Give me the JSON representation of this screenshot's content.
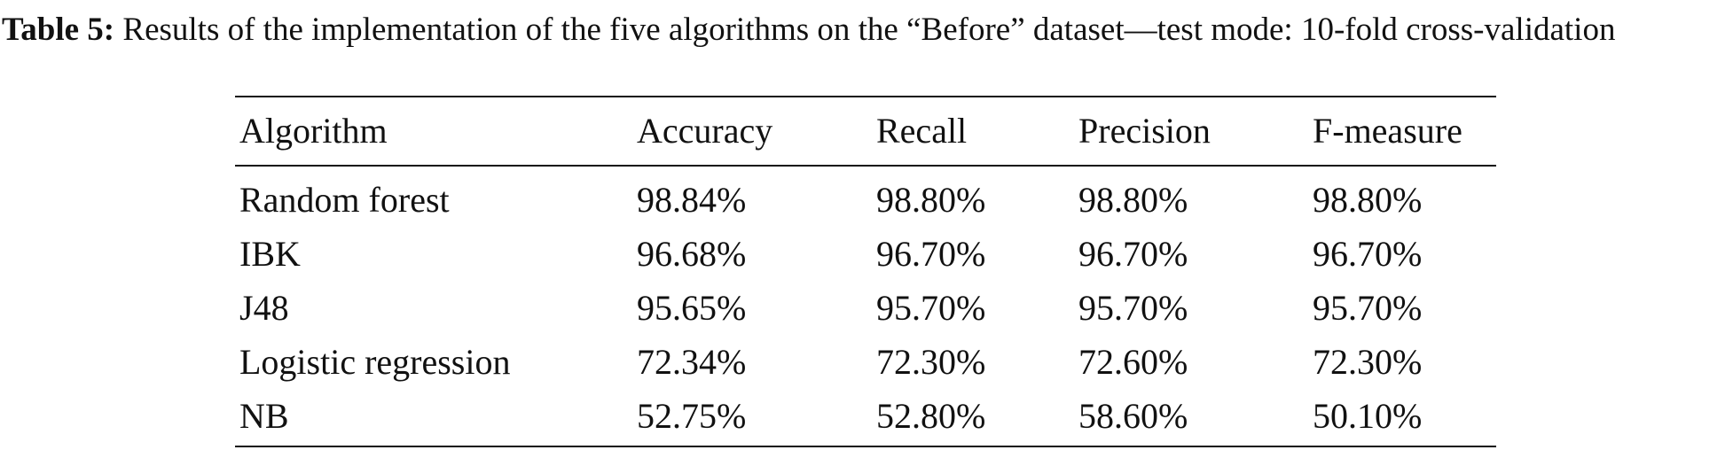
{
  "caption": {
    "label": "Table 5:",
    "text": "Results of the implementation of the five algorithms on the “Before” dataset—test mode: 10-fold cross-validation"
  },
  "table": {
    "header": [
      "Algorithm",
      "Accuracy",
      "Recall",
      "Precision",
      "F-measure"
    ],
    "rows": [
      [
        "Random forest",
        "98.84%",
        "98.80%",
        "98.80%",
        "98.80%"
      ],
      [
        "IBK",
        "96.68%",
        "96.70%",
        "96.70%",
        "96.70%"
      ],
      [
        "J48",
        "95.65%",
        "95.70%",
        "95.70%",
        "95.70%"
      ],
      [
        "Logistic regression",
        "72.34%",
        "72.30%",
        "72.60%",
        "72.30%"
      ],
      [
        "NB",
        "52.75%",
        "52.80%",
        "58.60%",
        "50.10%"
      ]
    ]
  }
}
